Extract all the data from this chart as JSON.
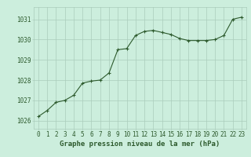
{
  "title": "Graphe pression niveau de la mer (hPa)",
  "x_values": [
    0,
    1,
    2,
    3,
    4,
    5,
    6,
    7,
    8,
    9,
    10,
    11,
    12,
    13,
    14,
    15,
    16,
    17,
    18,
    19,
    20,
    21,
    22,
    23
  ],
  "y_values": [
    1026.2,
    1026.5,
    1026.9,
    1027.0,
    1027.25,
    1027.85,
    1027.95,
    1028.0,
    1028.35,
    1029.5,
    1029.55,
    1030.2,
    1030.4,
    1030.45,
    1030.35,
    1030.25,
    1030.05,
    1029.95,
    1029.95,
    1029.95,
    1030.0,
    1030.2,
    1031.0,
    1031.1
  ],
  "background_color": "#cceedd",
  "grid_color": "#aaccbb",
  "line_color": "#2d5a2d",
  "marker_color": "#2d5a2d",
  "tick_color": "#2d5a2d",
  "title_color": "#2d5a2d",
  "ylim": [
    1025.6,
    1031.6
  ],
  "yticks": [
    1026,
    1027,
    1028,
    1029,
    1030,
    1031
  ],
  "xticks": [
    0,
    1,
    2,
    3,
    4,
    5,
    6,
    7,
    8,
    9,
    10,
    11,
    12,
    13,
    14,
    15,
    16,
    17,
    18,
    19,
    20,
    21,
    22,
    23
  ],
  "xlim": [
    -0.5,
    23.5
  ],
  "title_fontsize": 6.5,
  "tick_fontsize": 5.5,
  "line_width": 0.8,
  "marker_size": 3.0
}
